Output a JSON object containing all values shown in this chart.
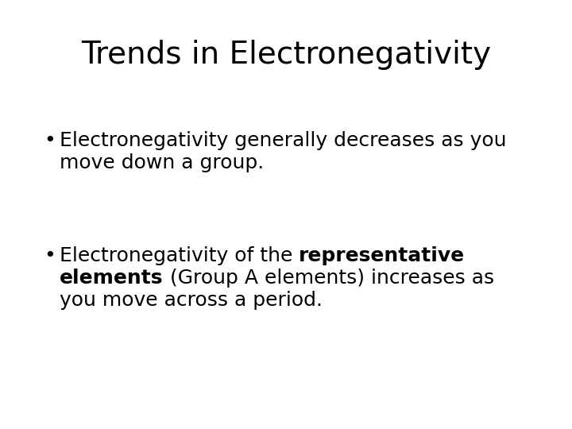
{
  "title": "Trends in Electronegativity",
  "title_fontsize": 28,
  "background_color": "#ffffff",
  "text_color": "#000000",
  "bullet1_line1": "Electronegativity generally decreases as you",
  "bullet1_line2": "move down a group.",
  "bullet2_line1_normal": "Electronegativity of the ",
  "bullet2_line1_bold": "representative",
  "bullet2_line2_bold": "elements",
  "bullet2_line2_normal": " (Group A elements) increases as",
  "bullet2_line3": "you move across a period.",
  "bullet_fontsize": 18,
  "bullet_symbol": "•"
}
